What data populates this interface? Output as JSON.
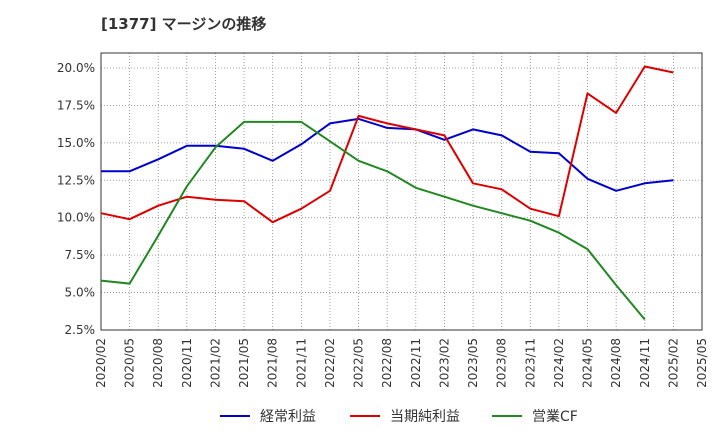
{
  "title": "[1377]  マージンの推移",
  "chart_data": {
    "type": "line",
    "categories": [
      "2020/02",
      "2020/05",
      "2020/08",
      "2020/11",
      "2021/02",
      "2021/05",
      "2021/08",
      "2021/11",
      "2022/02",
      "2022/05",
      "2022/08",
      "2022/11",
      "2023/02",
      "2023/05",
      "2023/08",
      "2023/11",
      "2024/02",
      "2024/05",
      "2024/08",
      "2024/11",
      "2025/02",
      "2025/05"
    ],
    "ylim": [
      2.5,
      21.0
    ],
    "yticks": [
      "2.5%",
      "5.0%",
      "7.5%",
      "10.0%",
      "12.5%",
      "15.0%",
      "17.5%",
      "20.0%"
    ],
    "ytick_values": [
      2.5,
      5.0,
      7.5,
      10.0,
      12.5,
      15.0,
      17.5,
      20.0
    ],
    "grid": true,
    "legend_position": "bottom",
    "series": [
      {
        "name": "経常利益",
        "color": "#0000cc",
        "values": [
          13.1,
          13.1,
          13.9,
          14.8,
          14.8,
          14.6,
          13.8,
          14.9,
          16.3,
          16.6,
          16.0,
          15.9,
          15.2,
          15.9,
          15.5,
          14.4,
          14.3,
          12.6,
          11.8,
          12.3,
          12.5,
          null
        ]
      },
      {
        "name": "当期純利益",
        "color": "#dd0000",
        "values": [
          10.3,
          9.9,
          10.8,
          11.4,
          11.2,
          11.1,
          9.7,
          10.6,
          11.8,
          16.8,
          16.3,
          15.9,
          15.5,
          12.3,
          11.9,
          10.6,
          10.1,
          18.3,
          17.0,
          20.1,
          19.7,
          null
        ]
      },
      {
        "name": "営業CF",
        "color": "#228822",
        "values": [
          5.8,
          5.6,
          8.8,
          12.1,
          14.7,
          16.4,
          16.4,
          16.4,
          15.1,
          13.8,
          13.1,
          12.0,
          11.4,
          10.8,
          10.3,
          9.8,
          9.0,
          7.9,
          5.5,
          3.2,
          null,
          null
        ]
      }
    ]
  }
}
